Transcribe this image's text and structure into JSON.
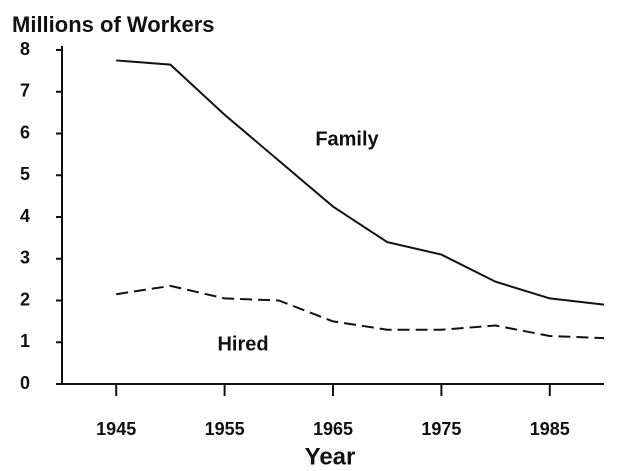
{
  "chart_data": {
    "type": "line",
    "title": "Millions of Workers",
    "x_label": "Year",
    "x": [
      1945,
      1950,
      1955,
      1960,
      1965,
      1970,
      1975,
      1980,
      1985,
      1990
    ],
    "series": [
      {
        "name": "Family",
        "color": "#111111",
        "style": "solid",
        "values": [
          7.75,
          7.65,
          6.45,
          5.35,
          4.25,
          3.4,
          3.1,
          2.45,
          2.05,
          1.9
        ]
      },
      {
        "name": "Hired",
        "color": "#111111",
        "style": "dashed",
        "values": [
          2.15,
          2.35,
          2.05,
          2.0,
          1.5,
          1.3,
          1.3,
          1.4,
          1.15,
          1.1
        ]
      }
    ],
    "xlim": [
      1940,
      1990
    ],
    "xticks": [
      1945,
      1955,
      1965,
      1975,
      1985
    ],
    "ylim": [
      0,
      8
    ],
    "yticks": [
      0,
      1,
      2,
      3,
      4,
      5,
      6,
      7,
      8
    ],
    "grid": false
  }
}
